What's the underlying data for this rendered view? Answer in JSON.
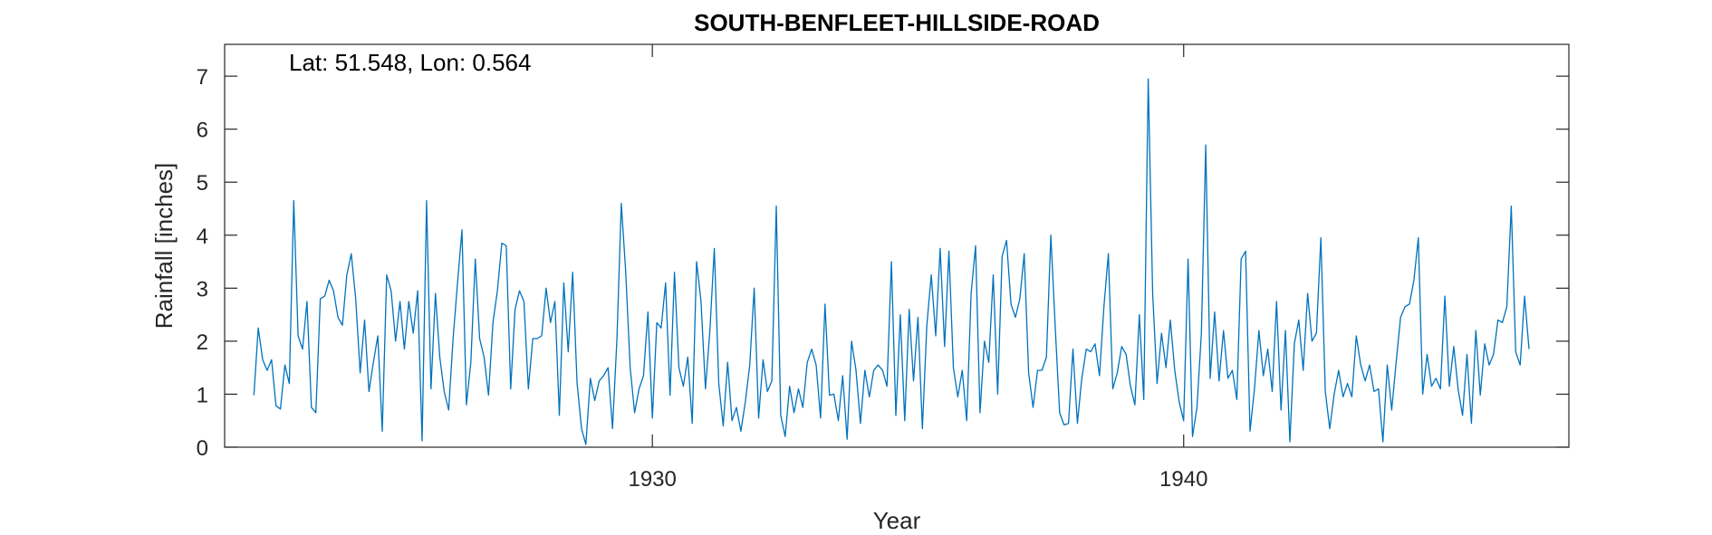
{
  "chart_data": {
    "type": "line",
    "title": "SOUTH-BENFLEET-HILLSIDE-ROAD",
    "annotation": "Lat: 51.548, Lon: 0.564",
    "xlabel": "Year",
    "ylabel": "Rainfall [inches]",
    "xlim": [
      1921.95,
      1947.25
    ],
    "ylim": [
      0,
      7.6
    ],
    "xticks": [
      1930,
      1940
    ],
    "xtick_labels": [
      "1930",
      "1940"
    ],
    "yticks": [
      0,
      1,
      2,
      3,
      4,
      5,
      6,
      7
    ],
    "ytick_labels": [
      "0",
      "1",
      "2",
      "3",
      "4",
      "5",
      "6",
      "7"
    ],
    "grid": false,
    "line_color": "#0072BD",
    "series": [
      {
        "start_year": 1922.5,
        "step_years": 0.08333,
        "values": [
          0.98,
          2.25,
          1.65,
          1.45,
          1.65,
          0.78,
          0.72,
          1.55,
          1.2,
          4.65,
          2.1,
          1.85,
          2.75,
          0.75,
          0.65,
          2.8,
          2.85,
          3.15,
          2.95,
          2.45,
          2.3,
          3.25,
          3.65,
          2.8,
          1.4,
          2.4,
          1.05,
          1.6,
          2.1,
          0.3,
          3.25,
          2.95,
          2.0,
          2.75,
          1.85,
          2.75,
          2.15,
          2.95,
          0.12,
          4.65,
          1.1,
          2.9,
          1.7,
          1.05,
          0.7,
          2.05,
          3.1,
          4.1,
          0.8,
          1.6,
          3.55,
          2.05,
          1.7,
          0.98,
          2.35,
          2.95,
          3.85,
          3.8,
          1.1,
          2.6,
          2.95,
          2.75,
          1.1,
          2.05,
          2.05,
          2.1,
          3.0,
          2.35,
          2.75,
          0.6,
          3.1,
          1.8,
          3.3,
          1.2,
          0.35,
          0.05,
          1.3,
          0.88,
          1.25,
          1.35,
          1.5,
          0.35,
          2.05,
          4.6,
          3.3,
          1.5,
          0.65,
          1.1,
          1.35,
          2.55,
          0.55,
          2.35,
          2.25,
          3.1,
          0.98,
          3.3,
          1.5,
          1.15,
          1.7,
          0.45,
          3.5,
          2.75,
          1.1,
          2.2,
          3.75,
          1.2,
          0.4,
          1.6,
          0.5,
          0.75,
          0.3,
          0.85,
          1.55,
          3.0,
          0.55,
          1.65,
          1.05,
          1.25,
          4.55,
          0.6,
          0.2,
          1.15,
          0.65,
          1.1,
          0.75,
          1.6,
          1.85,
          1.55,
          0.55,
          2.7,
          0.98,
          1.0,
          0.5,
          1.35,
          0.15,
          2.0,
          1.45,
          0.45,
          1.45,
          0.95,
          1.45,
          1.55,
          1.45,
          1.15,
          3.5,
          0.6,
          2.5,
          0.5,
          2.6,
          1.25,
          2.45,
          0.35,
          2.3,
          3.25,
          2.1,
          3.75,
          1.9,
          3.7,
          1.5,
          0.95,
          1.45,
          0.5,
          2.9,
          3.8,
          0.65,
          2.0,
          1.6,
          3.25,
          1.0,
          3.6,
          3.9,
          2.7,
          2.45,
          2.8,
          3.65,
          1.4,
          0.75,
          1.45,
          1.45,
          1.7,
          4.0,
          2.25,
          0.65,
          0.42,
          0.45,
          1.85,
          0.45,
          1.3,
          1.85,
          1.8,
          1.95,
          1.35,
          2.65,
          3.65,
          1.1,
          1.4,
          1.9,
          1.75,
          1.15,
          0.8,
          2.5,
          0.9,
          6.95,
          2.9,
          1.2,
          2.15,
          1.5,
          2.4,
          1.45,
          0.85,
          0.5,
          3.55,
          0.2,
          0.75,
          2.15,
          5.7,
          1.3,
          2.55,
          1.25,
          2.2,
          1.3,
          1.45,
          0.9,
          3.55,
          3.7,
          0.3,
          1.1,
          2.2,
          1.35,
          1.85,
          1.05,
          2.75,
          0.7,
          2.2,
          0.1,
          1.95,
          2.4,
          1.45,
          2.9,
          2.0,
          2.15,
          3.95,
          1.05,
          0.35,
          1.0,
          1.45,
          0.95,
          1.2,
          0.95,
          2.1,
          1.55,
          1.25,
          1.55,
          1.05,
          1.1,
          0.1,
          1.55,
          0.7,
          1.6,
          2.45,
          2.65,
          2.7,
          3.15,
          3.95,
          1.0,
          1.75,
          1.15,
          1.3,
          1.1,
          2.85,
          1.15,
          1.9,
          1.1,
          0.6,
          1.75,
          0.45,
          2.2,
          0.98,
          1.95,
          1.55,
          1.75,
          2.4,
          2.35,
          2.65,
          4.55,
          1.8,
          1.55,
          2.85,
          1.85
        ]
      }
    ]
  }
}
